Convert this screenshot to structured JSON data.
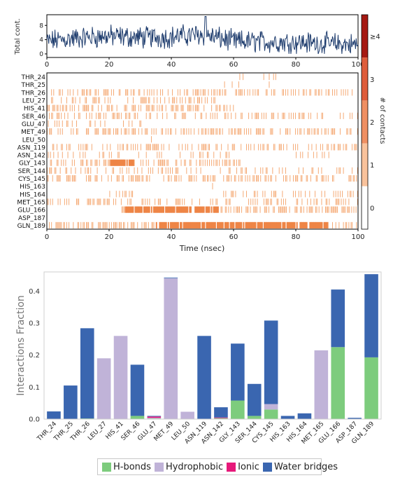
{
  "chart_data": [
    {
      "type": "line",
      "ylabel": "Total cont.",
      "xlim": [
        0,
        100
      ],
      "ylim": [
        -1,
        11
      ],
      "yticks": [
        0,
        4,
        8
      ],
      "xticks": [
        0,
        20,
        40,
        60,
        80,
        100
      ],
      "xticklabels": [
        "0",
        "20",
        "40",
        "60",
        "80",
        "100"
      ],
      "series_color": "#1f3d6e",
      "segments": [
        {
          "x": [
            0,
            10,
            20,
            30,
            40,
            50,
            60,
            70,
            80,
            90,
            100
          ],
          "mean": [
            3.5,
            4.5,
            5,
            4.6,
            4.8,
            5.5,
            3.5,
            3.4,
            3.3,
            2.8,
            2.6
          ],
          "amplitude": 2.5
        },
        {
          "x": [
            51
          ],
          "mean": [
            10.5
          ],
          "amplitude": 0
        }
      ]
    },
    {
      "type": "heatmap",
      "xlabel": "Time (nsec)",
      "xlim": [
        0,
        100
      ],
      "xticks": [
        0,
        20,
        40,
        60,
        80,
        100
      ],
      "xticklabels": [
        "0",
        "20",
        "40",
        "60",
        "80",
        "100"
      ],
      "residues": [
        "THR_24",
        "THR_25",
        "THR_26",
        "LEU_27",
        "HIS_41",
        "SER_46",
        "GLU_47",
        "MET_49",
        "LEU_50",
        "ASN_119",
        "ASN_142",
        "GLY_143",
        "SER_144",
        "CYS_145",
        "HIS_163",
        "HIS_164",
        "MET_165",
        "GLU_166",
        "ASP_187",
        "GLN_189"
      ],
      "presence_ranges": [
        [
          [
            21,
            22
          ],
          [
            57,
            74
          ]
        ],
        [
          [
            57,
            72
          ]
        ],
        [
          [
            0,
            100
          ]
        ],
        [
          [
            0,
            54
          ]
        ],
        [
          [
            0,
            60
          ]
        ],
        [
          [
            0,
            100
          ]
        ],
        [
          [
            0,
            32
          ]
        ],
        [
          [
            0,
            100
          ]
        ],
        [
          [
            18,
            22
          ],
          [
            30,
            34
          ]
        ],
        [
          [
            0,
            100
          ]
        ],
        [
          [
            0,
            60
          ],
          [
            80,
            92
          ]
        ],
        [
          [
            0,
            62
          ]
        ],
        [
          [
            0,
            100
          ]
        ],
        [
          [
            0,
            100
          ]
        ],
        [
          [
            50,
            60
          ]
        ],
        [
          [
            18,
            28
          ],
          [
            56,
            100
          ]
        ],
        [
          [
            0,
            100
          ]
        ],
        [
          [
            24,
            100
          ]
        ],
        [
          [
            62,
            64
          ]
        ],
        [
          [
            0,
            100
          ]
        ]
      ],
      "density": [
        0.1,
        0.1,
        0.4,
        0.35,
        0.45,
        0.35,
        0.15,
        0.5,
        0.1,
        0.4,
        0.2,
        0.45,
        0.25,
        0.45,
        0.1,
        0.25,
        0.3,
        0.5,
        0.05,
        0.55
      ],
      "dense_ranges": [
        {
          "row": 17,
          "range": [
            25,
            55
          ]
        },
        {
          "row": 19,
          "range": [
            35,
            90
          ]
        },
        {
          "row": 11,
          "range": [
            20,
            28
          ]
        }
      ],
      "cell_color": "#f4a46c",
      "dense_color": "#ee8546",
      "colorbar": {
        "levels": [
          {
            "label": "0",
            "color": "#ffffff"
          },
          {
            "label": "1",
            "color": "#f9c29b"
          },
          {
            "label": "2",
            "color": "#ef8f62"
          },
          {
            "label": "3",
            "color": "#de5d3b"
          },
          {
            "label": "≥4",
            "color": "#a51912"
          }
        ],
        "label": "# of contacts"
      }
    },
    {
      "type": "bar",
      "stacked": true,
      "ylabel": "Interactions Fraction",
      "ylim": [
        0,
        0.46
      ],
      "yticks": [
        0.0,
        0.1,
        0.2,
        0.3,
        0.4
      ],
      "yticklabels": [
        "0.0",
        "0.1",
        "0.2",
        "0.3",
        "0.4"
      ],
      "categories": [
        "THR_24",
        "THR_25",
        "THR_26",
        "LEU_27",
        "HIS_41",
        "SER_46",
        "GLU_47",
        "MET_49",
        "LEU_50",
        "ASN_119",
        "ASN_142",
        "GLY_143",
        "SER_144",
        "CYS_145",
        "HIS_163",
        "HIS_164",
        "MET_165",
        "GLU_166",
        "ASP_187",
        "GLN_189"
      ],
      "series": [
        {
          "name": "H-bonds",
          "color": "#7dcc7d",
          "values": [
            0,
            0,
            0.002,
            0,
            0,
            0.01,
            0.002,
            0,
            0,
            0,
            0.003,
            0.058,
            0.01,
            0.03,
            0,
            0,
            0,
            0.225,
            0,
            0.193
          ]
        },
        {
          "name": "Hydrophobic",
          "color": "#c0b3d8",
          "values": [
            0,
            0,
            0,
            0.19,
            0.26,
            0,
            0.002,
            0.44,
            0.023,
            0,
            0,
            0,
            0,
            0.017,
            0,
            0,
            0.215,
            0,
            0,
            0
          ]
        },
        {
          "name": "Ionic",
          "color": "#e6197a",
          "values": [
            0,
            0,
            0,
            0,
            0,
            0,
            0.004,
            0,
            0,
            0,
            0.002,
            0,
            0,
            0,
            0,
            0,
            0,
            0,
            0,
            0
          ]
        },
        {
          "name": "Water bridges",
          "color": "#3a66b0",
          "values": [
            0.024,
            0.105,
            0.282,
            0,
            0,
            0.16,
            0.002,
            0.002,
            0,
            0.26,
            0.032,
            0.178,
            0.1,
            0.261,
            0.01,
            0.018,
            0,
            0.18,
            0.004,
            0.26
          ]
        }
      ],
      "legend_position": "bottom-center"
    }
  ]
}
